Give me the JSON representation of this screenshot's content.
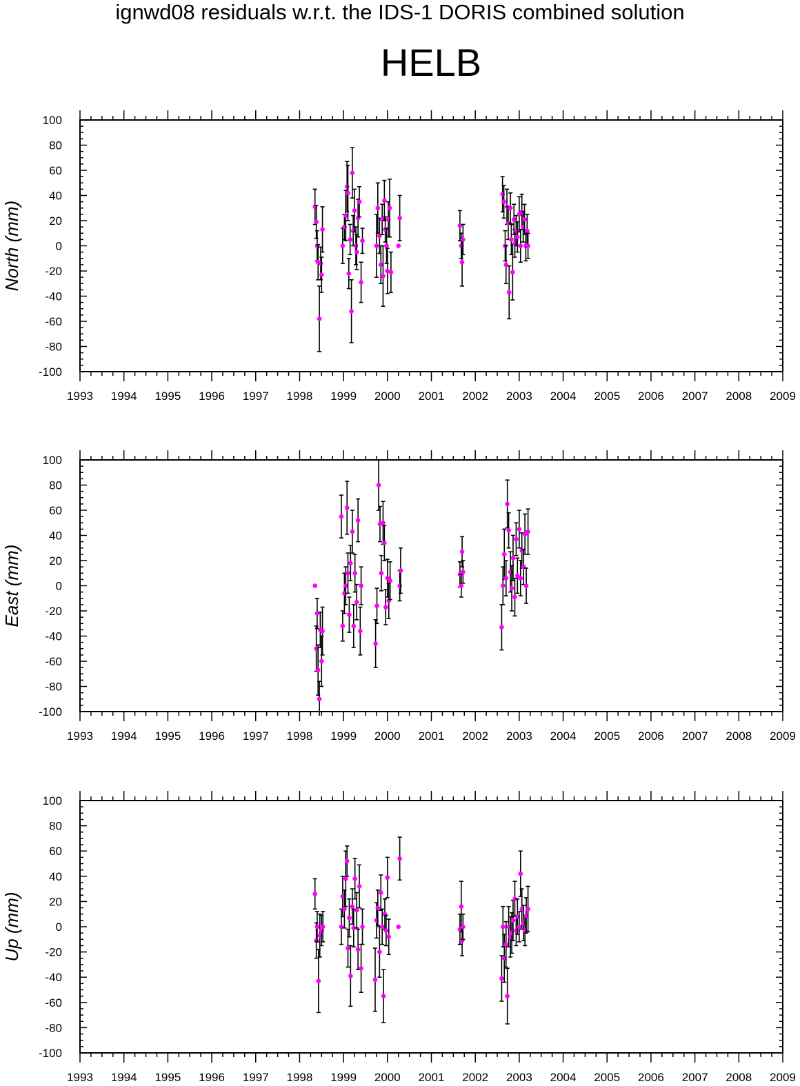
{
  "title": "ignwd08 residuals w.r.t. the IDS-1 DORIS combined solution",
  "station": "HELB",
  "colors": {
    "point": "#ff00ff",
    "errorbar": "#000000",
    "axis": "#000000"
  },
  "chart_data": [
    {
      "type": "scatter",
      "ylabel": "North (mm)",
      "xlim": [
        1993,
        2009
      ],
      "ylim": [
        -100,
        100
      ],
      "x_ticks": [
        "1993",
        "1994",
        "1995",
        "1996",
        "1997",
        "1998",
        "1999",
        "2000",
        "2001",
        "2002",
        "2003",
        "2004",
        "2005",
        "2006",
        "2007",
        "2008",
        "2009"
      ],
      "y_ticks": [
        "100",
        "80",
        "60",
        "40",
        "20",
        "0",
        "-20",
        "-40",
        "-60",
        "-80",
        "-100"
      ],
      "grid": false,
      "points": [
        {
          "x": 1998.35,
          "y": 31,
          "e": 14
        },
        {
          "x": 1998.38,
          "y": 19,
          "e": 13
        },
        {
          "x": 1998.4,
          "y": 0,
          "e": 12
        },
        {
          "x": 1998.42,
          "y": -13,
          "e": 14
        },
        {
          "x": 1998.45,
          "y": -58,
          "e": 26
        },
        {
          "x": 1998.48,
          "y": -14,
          "e": 13
        },
        {
          "x": 1998.5,
          "y": -23,
          "e": 14
        },
        {
          "x": 1998.52,
          "y": 13,
          "e": 18
        },
        {
          "x": 1998.98,
          "y": 0,
          "e": 14
        },
        {
          "x": 1999.02,
          "y": 15,
          "e": 10
        },
        {
          "x": 1999.05,
          "y": 24,
          "e": 20
        },
        {
          "x": 1999.08,
          "y": 47,
          "e": 20
        },
        {
          "x": 1999.1,
          "y": 42,
          "e": 22
        },
        {
          "x": 1999.12,
          "y": -22,
          "e": 12
        },
        {
          "x": 1999.15,
          "y": 5,
          "e": 12
        },
        {
          "x": 1999.18,
          "y": -52,
          "e": 25
        },
        {
          "x": 1999.2,
          "y": 58,
          "e": 20
        },
        {
          "x": 1999.22,
          "y": 12,
          "e": 12
        },
        {
          "x": 1999.25,
          "y": 28,
          "e": 17
        },
        {
          "x": 1999.28,
          "y": 0,
          "e": 15
        },
        {
          "x": 1999.3,
          "y": -5,
          "e": 14
        },
        {
          "x": 1999.33,
          "y": 22,
          "e": 15
        },
        {
          "x": 1999.36,
          "y": 35,
          "e": 12
        },
        {
          "x": 1999.4,
          "y": -29,
          "e": 16
        },
        {
          "x": 1999.43,
          "y": 4,
          "e": 10
        },
        {
          "x": 1999.75,
          "y": 0,
          "e": 25
        },
        {
          "x": 1999.78,
          "y": 30,
          "e": 20
        },
        {
          "x": 1999.82,
          "y": 8,
          "e": 14
        },
        {
          "x": 1999.85,
          "y": -15,
          "e": 15
        },
        {
          "x": 1999.88,
          "y": 21,
          "e": 12
        },
        {
          "x": 1999.9,
          "y": -24,
          "e": 24
        },
        {
          "x": 1999.93,
          "y": 36,
          "e": 16
        },
        {
          "x": 1999.95,
          "y": 13,
          "e": 10
        },
        {
          "x": 1999.98,
          "y": 0,
          "e": 14
        },
        {
          "x": 2000.0,
          "y": -20,
          "e": 18
        },
        {
          "x": 2000.02,
          "y": 21,
          "e": 14
        },
        {
          "x": 2000.05,
          "y": 30,
          "e": 23
        },
        {
          "x": 2000.08,
          "y": -21,
          "e": 16
        },
        {
          "x": 2000.25,
          "y": 0,
          "e": 0
        },
        {
          "x": 2000.28,
          "y": 22,
          "e": 18
        },
        {
          "x": 2001.65,
          "y": 16,
          "e": 12
        },
        {
          "x": 2001.68,
          "y": 0,
          "e": 10
        },
        {
          "x": 2001.7,
          "y": -13,
          "e": 19
        },
        {
          "x": 2001.72,
          "y": 5,
          "e": 12
        },
        {
          "x": 2002.62,
          "y": 41,
          "e": 14
        },
        {
          "x": 2002.65,
          "y": 35,
          "e": 13
        },
        {
          "x": 2002.68,
          "y": 0,
          "e": 12
        },
        {
          "x": 2002.7,
          "y": -15,
          "e": 15
        },
        {
          "x": 2002.72,
          "y": 31,
          "e": 14
        },
        {
          "x": 2002.75,
          "y": 18,
          "e": 13
        },
        {
          "x": 2002.77,
          "y": -37,
          "e": 21
        },
        {
          "x": 2002.8,
          "y": 30,
          "e": 12
        },
        {
          "x": 2002.82,
          "y": 5,
          "e": 12
        },
        {
          "x": 2002.85,
          "y": -21,
          "e": 22
        },
        {
          "x": 2002.88,
          "y": 21,
          "e": 12
        },
        {
          "x": 2002.9,
          "y": 2,
          "e": 11
        },
        {
          "x": 2002.93,
          "y": 12,
          "e": 12
        },
        {
          "x": 2002.96,
          "y": 7,
          "e": 12
        },
        {
          "x": 2003.0,
          "y": 25,
          "e": 14
        },
        {
          "x": 2003.03,
          "y": 0,
          "e": 13
        },
        {
          "x": 2003.06,
          "y": 27,
          "e": 14
        },
        {
          "x": 2003.09,
          "y": 15,
          "e": 12
        },
        {
          "x": 2003.12,
          "y": 21,
          "e": 12
        },
        {
          "x": 2003.15,
          "y": 0,
          "e": 12
        },
        {
          "x": 2003.18,
          "y": 12,
          "e": 13
        },
        {
          "x": 2003.2,
          "y": 0,
          "e": 10
        }
      ]
    },
    {
      "type": "scatter",
      "ylabel": "East (mm)",
      "xlim": [
        1993,
        2009
      ],
      "ylim": [
        -100,
        100
      ],
      "x_ticks": [
        "1993",
        "1994",
        "1995",
        "1996",
        "1997",
        "1998",
        "1999",
        "2000",
        "2001",
        "2002",
        "2003",
        "2004",
        "2005",
        "2006",
        "2007",
        "2008",
        "2009"
      ],
      "y_ticks": [
        "100",
        "80",
        "60",
        "40",
        "20",
        "0",
        "-20",
        "-40",
        "-60",
        "-80",
        "-100"
      ],
      "grid": false,
      "points": [
        {
          "x": 1998.35,
          "y": 0,
          "e": 0
        },
        {
          "x": 1998.38,
          "y": -50,
          "e": 18
        },
        {
          "x": 1998.4,
          "y": -22,
          "e": 12
        },
        {
          "x": 1998.42,
          "y": -67,
          "e": 20
        },
        {
          "x": 1998.45,
          "y": -90,
          "e": 14
        },
        {
          "x": 1998.47,
          "y": -35,
          "e": 14
        },
        {
          "x": 1998.5,
          "y": -60,
          "e": 20
        },
        {
          "x": 1998.52,
          "y": -36,
          "e": 19
        },
        {
          "x": 1998.95,
          "y": 55,
          "e": 17
        },
        {
          "x": 1998.98,
          "y": -32,
          "e": 12
        },
        {
          "x": 1999.02,
          "y": -6,
          "e": 16
        },
        {
          "x": 1999.05,
          "y": 0,
          "e": 15
        },
        {
          "x": 1999.08,
          "y": 62,
          "e": 21
        },
        {
          "x": 1999.1,
          "y": 10,
          "e": 16
        },
        {
          "x": 1999.13,
          "y": -23,
          "e": 14
        },
        {
          "x": 1999.16,
          "y": 18,
          "e": 14
        },
        {
          "x": 1999.2,
          "y": 43,
          "e": 17
        },
        {
          "x": 1999.23,
          "y": -32,
          "e": 17
        },
        {
          "x": 1999.26,
          "y": 10,
          "e": 15
        },
        {
          "x": 1999.3,
          "y": -13,
          "e": 14
        },
        {
          "x": 1999.33,
          "y": 52,
          "e": 17
        },
        {
          "x": 1999.38,
          "y": -36,
          "e": 19
        },
        {
          "x": 1999.4,
          "y": 0,
          "e": 15
        },
        {
          "x": 1999.73,
          "y": -46,
          "e": 19
        },
        {
          "x": 1999.76,
          "y": -16,
          "e": 14
        },
        {
          "x": 1999.8,
          "y": 80,
          "e": 20
        },
        {
          "x": 1999.83,
          "y": 49,
          "e": 14
        },
        {
          "x": 1999.86,
          "y": 10,
          "e": 14
        },
        {
          "x": 1999.9,
          "y": 50,
          "e": 17
        },
        {
          "x": 1999.93,
          "y": 34,
          "e": 14
        },
        {
          "x": 1999.96,
          "y": -17,
          "e": 14
        },
        {
          "x": 2000.0,
          "y": 6,
          "e": 15
        },
        {
          "x": 2000.03,
          "y": -12,
          "e": 14
        },
        {
          "x": 2000.06,
          "y": 4,
          "e": 15
        },
        {
          "x": 2000.28,
          "y": 0,
          "e": 12
        },
        {
          "x": 2000.3,
          "y": 12,
          "e": 18
        },
        {
          "x": 2001.65,
          "y": 9,
          "e": 10
        },
        {
          "x": 2001.68,
          "y": 0,
          "e": 9
        },
        {
          "x": 2001.7,
          "y": 27,
          "e": 12
        },
        {
          "x": 2001.72,
          "y": 11,
          "e": 9
        },
        {
          "x": 2002.6,
          "y": -33,
          "e": 18
        },
        {
          "x": 2002.63,
          "y": 0,
          "e": 15
        },
        {
          "x": 2002.66,
          "y": 25,
          "e": 20
        },
        {
          "x": 2002.7,
          "y": 6,
          "e": 14
        },
        {
          "x": 2002.73,
          "y": 65,
          "e": 19
        },
        {
          "x": 2002.76,
          "y": 44,
          "e": 14
        },
        {
          "x": 2002.8,
          "y": 11,
          "e": 16
        },
        {
          "x": 2002.83,
          "y": -2,
          "e": 18
        },
        {
          "x": 2002.86,
          "y": 22,
          "e": 18
        },
        {
          "x": 2002.9,
          "y": -9,
          "e": 15
        },
        {
          "x": 2002.93,
          "y": 37,
          "e": 13
        },
        {
          "x": 2002.96,
          "y": 8,
          "e": 14
        },
        {
          "x": 2003.0,
          "y": 45,
          "e": 15
        },
        {
          "x": 2003.03,
          "y": 6,
          "e": 14
        },
        {
          "x": 2003.06,
          "y": 28,
          "e": 14
        },
        {
          "x": 2003.1,
          "y": 15,
          "e": 14
        },
        {
          "x": 2003.13,
          "y": 41,
          "e": 16
        },
        {
          "x": 2003.16,
          "y": 0,
          "e": 14
        },
        {
          "x": 2003.2,
          "y": 43,
          "e": 18
        }
      ]
    },
    {
      "type": "scatter",
      "ylabel": "Up (mm)",
      "xlim": [
        1993,
        2009
      ],
      "ylim": [
        -100,
        100
      ],
      "x_ticks": [
        "1993",
        "1994",
        "1995",
        "1996",
        "1997",
        "1998",
        "1999",
        "2000",
        "2001",
        "2002",
        "2003",
        "2004",
        "2005",
        "2006",
        "2007",
        "2008",
        "2009"
      ],
      "y_ticks": [
        "100",
        "80",
        "60",
        "40",
        "20",
        "0",
        "-20",
        "-40",
        "-60",
        "-80",
        "-100"
      ],
      "grid": false,
      "points": [
        {
          "x": 1998.35,
          "y": 26,
          "e": 12
        },
        {
          "x": 1998.38,
          "y": -11,
          "e": 14
        },
        {
          "x": 1998.4,
          "y": 0,
          "e": 12
        },
        {
          "x": 1998.43,
          "y": -43,
          "e": 25
        },
        {
          "x": 1998.46,
          "y": -7,
          "e": 17
        },
        {
          "x": 1998.5,
          "y": -3,
          "e": 12
        },
        {
          "x": 1998.53,
          "y": 0,
          "e": 12
        },
        {
          "x": 1998.95,
          "y": 0,
          "e": 14
        },
        {
          "x": 1998.98,
          "y": 24,
          "e": 16
        },
        {
          "x": 1999.02,
          "y": 14,
          "e": 15
        },
        {
          "x": 1999.05,
          "y": 38,
          "e": 22
        },
        {
          "x": 1999.08,
          "y": 52,
          "e": 12
        },
        {
          "x": 1999.1,
          "y": -17,
          "e": 15
        },
        {
          "x": 1999.13,
          "y": 7,
          "e": 15
        },
        {
          "x": 1999.16,
          "y": -39,
          "e": 24
        },
        {
          "x": 1999.2,
          "y": 16,
          "e": 14
        },
        {
          "x": 1999.23,
          "y": -1,
          "e": 15
        },
        {
          "x": 1999.26,
          "y": 38,
          "e": 16
        },
        {
          "x": 1999.3,
          "y": 13,
          "e": 14
        },
        {
          "x": 1999.33,
          "y": -18,
          "e": 16
        },
        {
          "x": 1999.36,
          "y": 32,
          "e": 17
        },
        {
          "x": 1999.4,
          "y": -33,
          "e": 19
        },
        {
          "x": 1999.43,
          "y": 0,
          "e": 14
        },
        {
          "x": 1999.72,
          "y": -42,
          "e": 25
        },
        {
          "x": 1999.75,
          "y": 5,
          "e": 14
        },
        {
          "x": 1999.78,
          "y": 15,
          "e": 14
        },
        {
          "x": 1999.82,
          "y": -20,
          "e": 20
        },
        {
          "x": 1999.85,
          "y": 27,
          "e": 14
        },
        {
          "x": 1999.88,
          "y": 0,
          "e": 14
        },
        {
          "x": 1999.91,
          "y": -55,
          "e": 21
        },
        {
          "x": 1999.94,
          "y": 10,
          "e": 12
        },
        {
          "x": 1999.97,
          "y": -3,
          "e": 12
        },
        {
          "x": 2000.0,
          "y": 39,
          "e": 16
        },
        {
          "x": 2000.03,
          "y": -8,
          "e": 14
        },
        {
          "x": 2000.25,
          "y": 0,
          "e": 0
        },
        {
          "x": 2000.28,
          "y": 54,
          "e": 17
        },
        {
          "x": 2001.65,
          "y": -2,
          "e": 12
        },
        {
          "x": 2001.68,
          "y": 16,
          "e": 20
        },
        {
          "x": 2001.7,
          "y": -11,
          "e": 12
        },
        {
          "x": 2001.72,
          "y": 0,
          "e": 10
        },
        {
          "x": 2002.6,
          "y": -41,
          "e": 18
        },
        {
          "x": 2002.63,
          "y": 0,
          "e": 16
        },
        {
          "x": 2002.66,
          "y": -25,
          "e": 19
        },
        {
          "x": 2002.7,
          "y": -14,
          "e": 18
        },
        {
          "x": 2002.73,
          "y": -55,
          "e": 22
        },
        {
          "x": 2002.76,
          "y": 0,
          "e": 16
        },
        {
          "x": 2002.8,
          "y": -8,
          "e": 16
        },
        {
          "x": 2002.83,
          "y": -5,
          "e": 16
        },
        {
          "x": 2002.86,
          "y": 5,
          "e": 16
        },
        {
          "x": 2002.9,
          "y": 22,
          "e": 14
        },
        {
          "x": 2002.93,
          "y": -3,
          "e": 12
        },
        {
          "x": 2002.96,
          "y": 8,
          "e": 14
        },
        {
          "x": 2003.0,
          "y": 0,
          "e": 12
        },
        {
          "x": 2003.03,
          "y": 42,
          "e": 18
        },
        {
          "x": 2003.06,
          "y": 14,
          "e": 16
        },
        {
          "x": 2003.1,
          "y": 3,
          "e": 14
        },
        {
          "x": 2003.13,
          "y": -3,
          "e": 12
        },
        {
          "x": 2003.16,
          "y": 9,
          "e": 14
        },
        {
          "x": 2003.2,
          "y": 14,
          "e": 18
        }
      ]
    }
  ]
}
